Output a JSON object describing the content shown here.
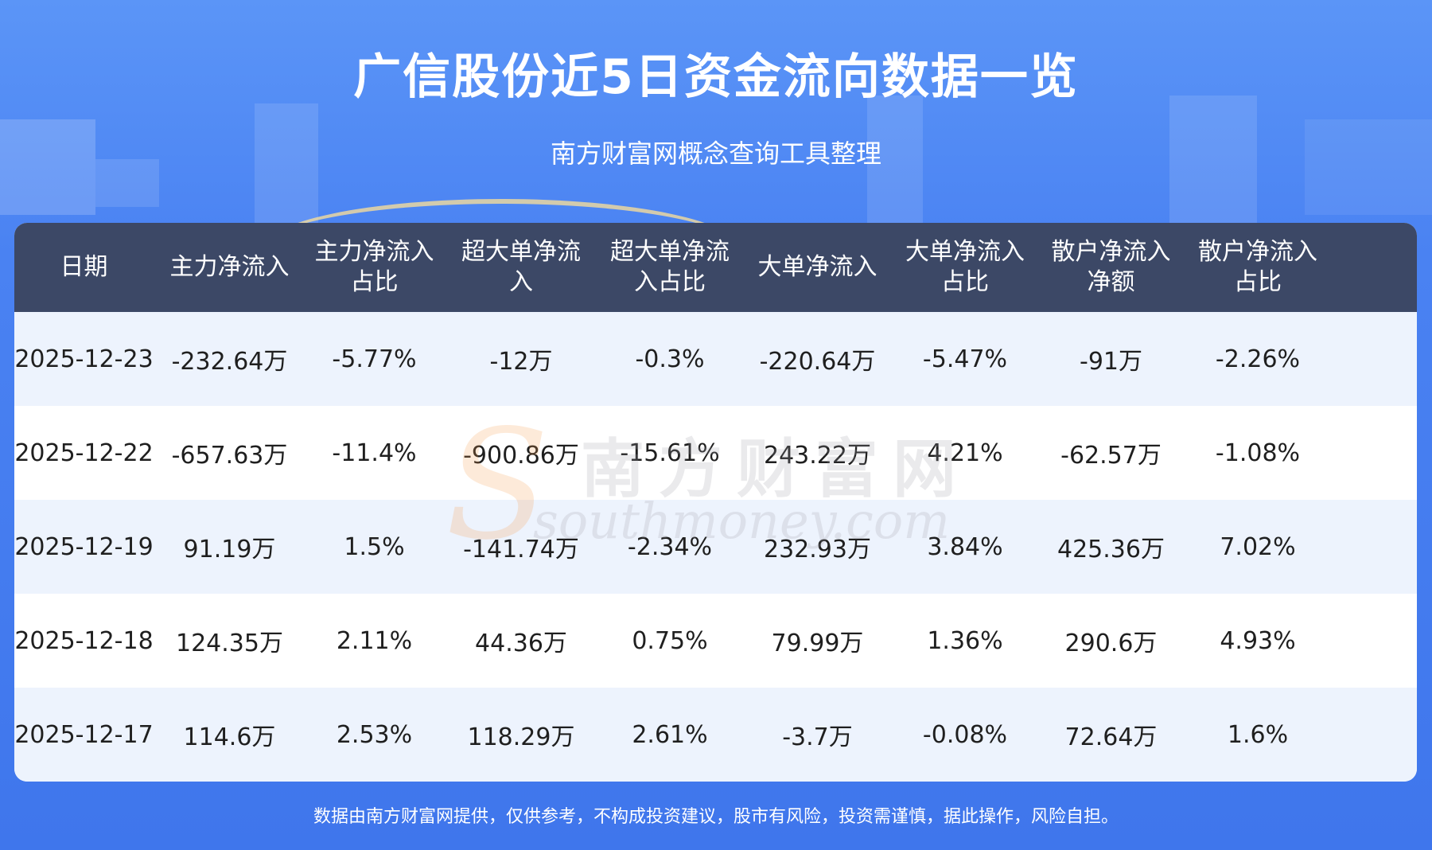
{
  "title": "广信股份近5日资金流向数据一览",
  "subtitle": "南方财富网概念查询工具整理",
  "watermark": {
    "cn": "南方财富网",
    "en": "southmoney.com"
  },
  "table": {
    "headers": [
      "日期",
      "主力净流入",
      "主力净流入占比",
      "超大单净流入",
      "超大单净流入占比",
      "大单净流入",
      "大单净流入占比",
      "散户净流入净额",
      "散户净流入占比"
    ],
    "rows": [
      [
        "2025-12-23",
        "-232.64万",
        "-5.77%",
        "-12万",
        "-0.3%",
        "-220.64万",
        "-5.47%",
        "-91万",
        "-2.26%"
      ],
      [
        "2025-12-22",
        "-657.63万",
        "-11.4%",
        "-900.86万",
        "-15.61%",
        "243.22万",
        "4.21%",
        "-62.57万",
        "-1.08%"
      ],
      [
        "2025-12-19",
        "91.19万",
        "1.5%",
        "-141.74万",
        "-2.34%",
        "232.93万",
        "3.84%",
        "425.36万",
        "7.02%"
      ],
      [
        "2025-12-18",
        "124.35万",
        "2.11%",
        "44.36万",
        "0.75%",
        "79.99万",
        "1.36%",
        "290.6万",
        "4.93%"
      ],
      [
        "2025-12-17",
        "114.6万",
        "2.53%",
        "118.29万",
        "2.61%",
        "-3.7万",
        "-0.08%",
        "72.64万",
        "1.6%"
      ]
    ]
  },
  "footer": "数据由南方财富网提供，仅供参考，不构成投资建议，股市有风险，投资需谨慎，据此操作，风险自担。",
  "colors": {
    "background": "#4a82f2",
    "header_bg": "#3c4866",
    "row_alt": "#edf3fd",
    "row_plain": "#ffffff"
  }
}
